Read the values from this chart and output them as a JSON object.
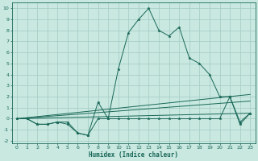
{
  "title": "",
  "xlabel": "Humidex (Indice chaleur)",
  "bg_color": "#c8e8e0",
  "grid_color": "#a8d0c8",
  "line_color": "#1a6858",
  "xlim": [
    -0.5,
    23.5
  ],
  "ylim": [
    -2.2,
    10.5
  ],
  "xticks": [
    0,
    1,
    2,
    3,
    4,
    5,
    6,
    7,
    8,
    9,
    10,
    11,
    12,
    13,
    14,
    15,
    16,
    17,
    18,
    19,
    20,
    21,
    22,
    23
  ],
  "yticks": [
    -2,
    -1,
    0,
    1,
    2,
    3,
    4,
    5,
    6,
    7,
    8,
    9,
    10
  ],
  "series_marked": [
    {
      "x": [
        0,
        1,
        2,
        3,
        4,
        5,
        6,
        7,
        8,
        9,
        10,
        11,
        12,
        13,
        14,
        15,
        16,
        17,
        18,
        19,
        20,
        21,
        22,
        23
      ],
      "y": [
        0.0,
        0.0,
        -0.5,
        -0.5,
        -0.3,
        -0.5,
        -1.3,
        -1.5,
        1.5,
        0.0,
        0.0,
        0.0,
        0.0,
        0.0,
        0.0,
        0.0,
        0.0,
        0.0,
        0.0,
        0.0,
        0.0,
        2.0,
        -0.5,
        0.5
      ]
    },
    {
      "x": [
        0,
        1,
        2,
        3,
        4,
        5,
        6,
        7,
        8,
        9,
        10,
        11,
        12,
        13,
        14,
        15,
        16,
        17,
        18,
        19,
        20,
        21,
        22,
        23
      ],
      "y": [
        0.0,
        0.0,
        -0.5,
        -0.5,
        -0.3,
        -0.3,
        -1.3,
        -1.5,
        0.0,
        0.0,
        4.5,
        7.8,
        9.0,
        10.0,
        8.0,
        7.5,
        8.3,
        5.5,
        5.0,
        4.0,
        2.0,
        2.0,
        -0.3,
        0.5
      ]
    }
  ],
  "series_lines": [
    {
      "x": [
        0,
        23
      ],
      "y": [
        0.0,
        2.2
      ]
    },
    {
      "x": [
        0,
        23
      ],
      "y": [
        0.0,
        1.6
      ]
    },
    {
      "x": [
        0,
        23
      ],
      "y": [
        0.0,
        0.5
      ]
    }
  ]
}
